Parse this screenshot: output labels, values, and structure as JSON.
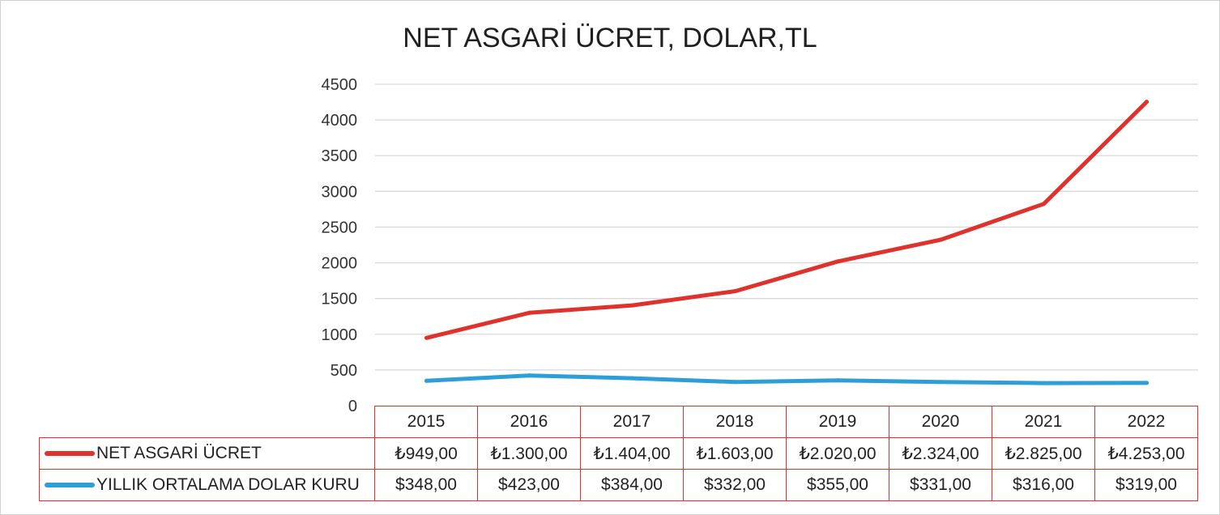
{
  "chart_data": {
    "type": "line",
    "title": "NET ASGARİ ÜCRET, DOLAR,TL",
    "categories": [
      "2015",
      "2016",
      "2017",
      "2018",
      "2019",
      "2020",
      "2021",
      "2022"
    ],
    "y_ticks": [
      "0",
      "500",
      "1000",
      "1500",
      "2000",
      "2500",
      "3000",
      "3500",
      "4000",
      "4500"
    ],
    "ylim": [
      0,
      4500
    ],
    "grid": true,
    "legend_placement": "data-table",
    "series": [
      {
        "name": "NET ASGARİ ÜCRET",
        "color": "#e0322c",
        "values": [
          949,
          1300,
          1404,
          1603,
          2020,
          2324,
          2825,
          4253
        ],
        "labels": [
          "₺949,00",
          "₺1.300,00",
          "₺1.404,00",
          "₺1.603,00",
          "₺2.020,00",
          "₺2.324,00",
          "₺2.825,00",
          "₺4.253,00"
        ]
      },
      {
        "name": "YILLIK ORTALAMA DOLAR KURU",
        "color": "#2e9fd6",
        "values": [
          348,
          423,
          384,
          332,
          355,
          331,
          316,
          319
        ],
        "labels": [
          "$348,00",
          "$423,00",
          "$384,00",
          "$332,00",
          "$355,00",
          "$331,00",
          "$316,00",
          "$319,00"
        ]
      }
    ]
  }
}
